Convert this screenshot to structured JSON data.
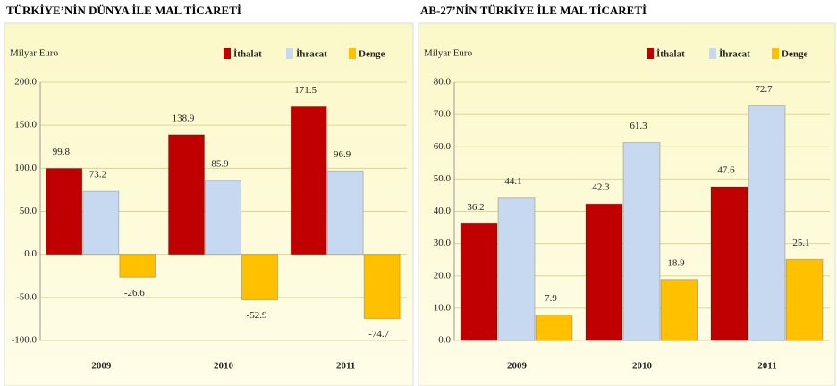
{
  "chart_data": [
    {
      "type": "bar",
      "title": "TÜRKİYE’NİN DÜNYA İLE MAL TİCARETİ",
      "y_label": "Milyar Euro",
      "categories": [
        "2009",
        "2010",
        "2011"
      ],
      "series": [
        {
          "name": "İthalat",
          "color": "#c00000",
          "values": [
            99.8,
            138.9,
            171.5
          ]
        },
        {
          "name": "İhracat",
          "color": "#c6d9f1",
          "values": [
            73.2,
            85.9,
            96.9
          ]
        },
        {
          "name": "Denge",
          "color": "#ffc000",
          "values": [
            -26.6,
            -52.9,
            -74.7
          ]
        }
      ],
      "ylim": [
        -100,
        200
      ],
      "yticks": [
        {
          "value": 200,
          "label": "200.0"
        },
        {
          "value": 150,
          "label": "150.0"
        },
        {
          "value": 100,
          "label": "100.0"
        },
        {
          "value": 50,
          "label": "50.0"
        },
        {
          "value": 0,
          "label": "0.0"
        },
        {
          "value": -50,
          "label": "-50.0"
        },
        {
          "value": -100,
          "label": "-100.0"
        }
      ],
      "grid": true,
      "legend": "top-right"
    },
    {
      "type": "bar",
      "title": "AB-27’NİN TÜRKİYE İLE MAL TİCARETİ",
      "y_label": "Milyar Euro",
      "categories": [
        "2009",
        "2010",
        "2011"
      ],
      "series": [
        {
          "name": "İthalat",
          "color": "#c00000",
          "values": [
            36.2,
            42.3,
            47.6
          ]
        },
        {
          "name": "İhracat",
          "color": "#c6d9f1",
          "values": [
            44.1,
            61.3,
            72.7
          ]
        },
        {
          "name": "Denge",
          "color": "#ffc000",
          "values": [
            7.9,
            18.9,
            25.1
          ]
        }
      ],
      "ylim": [
        0,
        80
      ],
      "yticks": [
        {
          "value": 80,
          "label": "80.0"
        },
        {
          "value": 70,
          "label": "70.0"
        },
        {
          "value": 60,
          "label": "60.0"
        },
        {
          "value": 50,
          "label": "50.0"
        },
        {
          "value": 40,
          "label": "40.0"
        },
        {
          "value": 30,
          "label": "30.0"
        },
        {
          "value": 20,
          "label": "20.0"
        },
        {
          "value": 10,
          "label": "10.0"
        },
        {
          "value": 0,
          "label": "0.0"
        }
      ],
      "grid": true,
      "legend": "top-right"
    }
  ]
}
